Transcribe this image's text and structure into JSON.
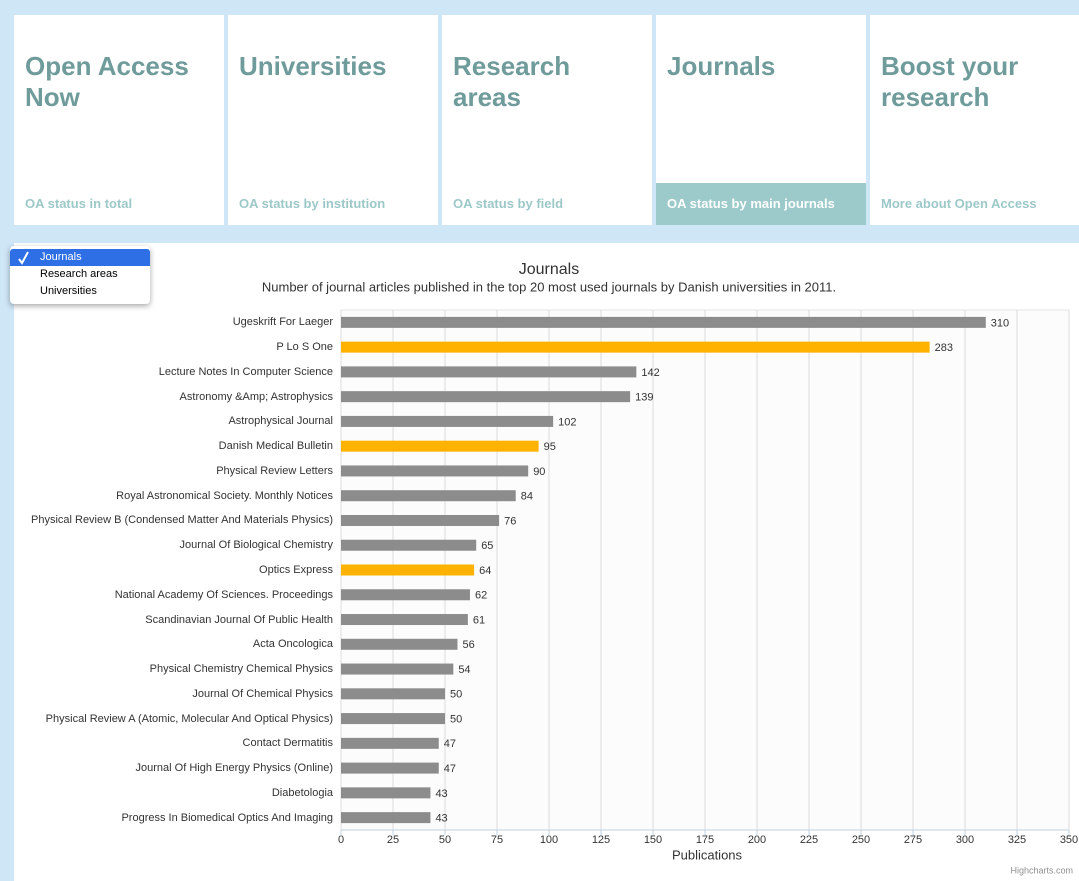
{
  "nav": [
    {
      "title": "Open Access Now",
      "subtitle": "OA status in total",
      "active": false
    },
    {
      "title": "Universities",
      "subtitle": "OA status by institution",
      "active": false
    },
    {
      "title": "Research areas",
      "subtitle": "OA status by field",
      "active": false
    },
    {
      "title": "Journals",
      "subtitle": "OA status by main journals",
      "active": true
    },
    {
      "title": "Boost your research",
      "subtitle": "More about Open Access",
      "active": false
    }
  ],
  "menu": [
    {
      "label": "Journals",
      "selected": true
    },
    {
      "label": "Research areas",
      "selected": false
    },
    {
      "label": "Universities",
      "selected": false
    }
  ],
  "chart_data": {
    "type": "bar",
    "orientation": "horizontal",
    "title": "Journals",
    "subtitle": "Number of journal articles published in the top 20 most used journals by Danish universities in 2011.",
    "x_label": "Publications",
    "categories": [
      "Ugeskrift For Laeger",
      "P Lo S One",
      "Lecture Notes In Computer Science",
      "Astronomy &Amp; Astrophysics",
      "Astrophysical Journal",
      "Danish Medical Bulletin",
      "Physical Review Letters",
      "Royal Astronomical Society. Monthly Notices",
      "Physical Review B (Condensed Matter And Materials Physics)",
      "Journal Of Biological Chemistry",
      "Optics Express",
      "National Academy Of Sciences. Proceedings",
      "Scandinavian Journal Of Public Health",
      "Acta Oncologica",
      "Physical Chemistry Chemical Physics",
      "Journal Of Chemical Physics",
      "Physical Review A (Atomic, Molecular And Optical Physics)",
      "Contact Dermatitis",
      "Journal Of High Energy Physics (Online)",
      "Diabetologia",
      "Progress In Biomedical Optics And Imaging"
    ],
    "values": [
      310,
      283,
      142,
      139,
      102,
      95,
      90,
      84,
      76,
      65,
      64,
      62,
      61,
      56,
      54,
      50,
      50,
      47,
      47,
      43,
      43
    ],
    "colors": [
      "#8c8c8c",
      "#ffb300",
      "#8c8c8c",
      "#8c8c8c",
      "#8c8c8c",
      "#ffb300",
      "#8c8c8c",
      "#8c8c8c",
      "#8c8c8c",
      "#8c8c8c",
      "#ffb300",
      "#8c8c8c",
      "#8c8c8c",
      "#8c8c8c",
      "#8c8c8c",
      "#8c8c8c",
      "#8c8c8c",
      "#8c8c8c",
      "#8c8c8c",
      "#8c8c8c",
      "#8c8c8c"
    ],
    "xlim": [
      0,
      350
    ],
    "xticks": [
      0,
      25,
      50,
      75,
      100,
      125,
      150,
      175,
      200,
      225,
      250,
      275,
      300,
      325,
      350
    ],
    "grid": true
  },
  "credit": "Highcharts.com"
}
